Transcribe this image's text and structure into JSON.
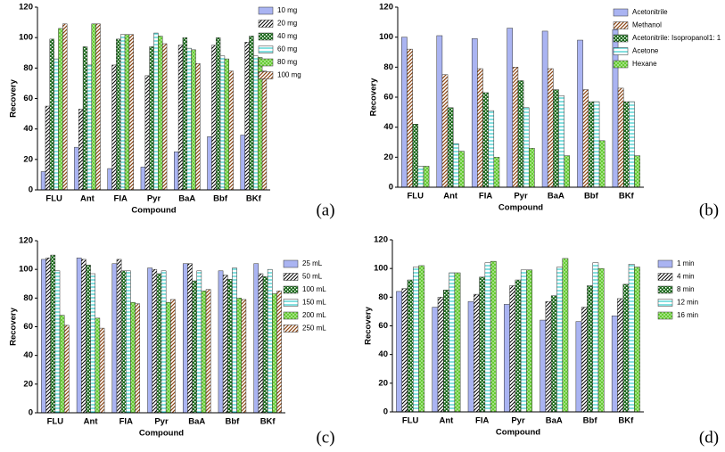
{
  "chart_data": [
    {
      "type": "bar",
      "label": "(a)",
      "xlabel": "Compound",
      "ylabel": "Recovery",
      "categories": [
        "FLU",
        "Ant",
        "FIA",
        "Pyr",
        "BaA",
        "Bbf",
        "BKf"
      ],
      "ylim": [
        0,
        120
      ],
      "yticks": [
        0,
        20,
        40,
        60,
        80,
        100,
        120
      ],
      "series": [
        {
          "name": "10 mg",
          "color": "#aab4f2",
          "pattern": "solid",
          "values": [
            12,
            28,
            14,
            15,
            25,
            35,
            36
          ]
        },
        {
          "name": "20 mg",
          "color": "#000000",
          "pattern": "diag",
          "values": [
            55,
            53,
            82,
            75,
            95,
            95,
            97
          ]
        },
        {
          "name": "40 mg",
          "color": "#1d6b1d",
          "pattern": "check",
          "values": [
            99,
            94,
            99,
            94,
            100,
            100,
            101
          ]
        },
        {
          "name": "60 mg",
          "color": "#33cccc",
          "pattern": "hline",
          "values": [
            86,
            82,
            102,
            103,
            93,
            88,
            88
          ]
        },
        {
          "name": "80 mg",
          "color": "#66cc33",
          "pattern": "dots",
          "values": [
            106,
            109,
            102,
            101,
            92,
            86,
            87
          ]
        },
        {
          "name": "100 mg",
          "color": "#8b4513",
          "pattern": "diag2",
          "values": [
            109,
            109,
            102,
            96,
            83,
            78,
            78
          ]
        }
      ]
    },
    {
      "type": "bar",
      "label": "(b)",
      "xlabel": "Compound",
      "ylabel": "Recovery",
      "categories": [
        "FLU",
        "Ant",
        "FIA",
        "Pyr",
        "BaA",
        "Bbf",
        "BKf"
      ],
      "ylim": [
        0,
        120
      ],
      "yticks": [
        0,
        20,
        40,
        60,
        80,
        100,
        120
      ],
      "series": [
        {
          "name": "Acetonitrile",
          "color": "#aab4f2",
          "pattern": "solid",
          "values": [
            100,
            101,
            99,
            106,
            104,
            98,
            105
          ]
        },
        {
          "name": "Methanol",
          "color": "#8b4513",
          "pattern": "diag2",
          "values": [
            92,
            75,
            79,
            80,
            79,
            65,
            66
          ]
        },
        {
          "name": "Acetonitrile: Isopropanol1: 1",
          "color": "#1d6b1d",
          "pattern": "check",
          "values": [
            42,
            53,
            63,
            71,
            65,
            57,
            57
          ]
        },
        {
          "name": "Acetone",
          "color": "#33cccc",
          "pattern": "hline",
          "values": [
            14,
            29,
            51,
            53,
            61,
            57,
            57
          ]
        },
        {
          "name": "Hexane",
          "color": "#66cc33",
          "pattern": "dots",
          "values": [
            14,
            24,
            20,
            26,
            21,
            31,
            21
          ]
        }
      ]
    },
    {
      "type": "bar",
      "label": "(c)",
      "xlabel": "Compound",
      "ylabel": "Recovery",
      "categories": [
        "FLU",
        "Ant",
        "FIA",
        "Pyr",
        "BaA",
        "Bbf",
        "BKf"
      ],
      "ylim": [
        0,
        120
      ],
      "yticks": [
        0,
        20,
        40,
        60,
        80,
        100,
        120
      ],
      "series": [
        {
          "name": "25 mL",
          "color": "#aab4f2",
          "pattern": "solid",
          "values": [
            107,
            108,
            104,
            101,
            104,
            99,
            104
          ]
        },
        {
          "name": "50 mL",
          "color": "#000000",
          "pattern": "diag",
          "values": [
            108,
            107,
            107,
            100,
            104,
            96,
            97
          ]
        },
        {
          "name": "100 mL",
          "color": "#1d6b1d",
          "pattern": "check",
          "values": [
            110,
            103,
            99,
            97,
            92,
            93,
            95
          ]
        },
        {
          "name": "150 mL",
          "color": "#33cccc",
          "pattern": "hline",
          "values": [
            99,
            97,
            99,
            99,
            99,
            101,
            100
          ]
        },
        {
          "name": "200 mL",
          "color": "#66cc33",
          "pattern": "dots",
          "values": [
            68,
            66,
            77,
            77,
            85,
            80,
            83
          ]
        },
        {
          "name": "250 mL",
          "color": "#8b4513",
          "pattern": "diag2",
          "values": [
            61,
            59,
            76,
            79,
            86,
            79,
            85
          ]
        }
      ]
    },
    {
      "type": "bar",
      "label": "(d)",
      "xlabel": "Compound",
      "ylabel": "Recovery",
      "categories": [
        "FLU",
        "Ant",
        "FIA",
        "Pyr",
        "BaA",
        "Bbf",
        "BKf"
      ],
      "ylim": [
        0,
        120
      ],
      "yticks": [
        0,
        20,
        40,
        60,
        80,
        100,
        120
      ],
      "series": [
        {
          "name": "1 min",
          "color": "#aab4f2",
          "pattern": "solid",
          "values": [
            84,
            73,
            77,
            75,
            64,
            63,
            67
          ]
        },
        {
          "name": "4 min",
          "color": "#000000",
          "pattern": "diag",
          "values": [
            86,
            80,
            82,
            88,
            77,
            73,
            79
          ]
        },
        {
          "name": "8 min",
          "color": "#1d6b1d",
          "pattern": "check",
          "values": [
            92,
            85,
            94,
            92,
            81,
            88,
            89
          ]
        },
        {
          "name": "12 min",
          "color": "#33cccc",
          "pattern": "hline",
          "values": [
            101,
            97,
            104,
            99,
            101,
            104,
            103
          ]
        },
        {
          "name": "16 min",
          "color": "#66cc33",
          "pattern": "dots",
          "values": [
            102,
            97,
            105,
            99,
            107,
            100,
            101
          ]
        }
      ]
    }
  ]
}
